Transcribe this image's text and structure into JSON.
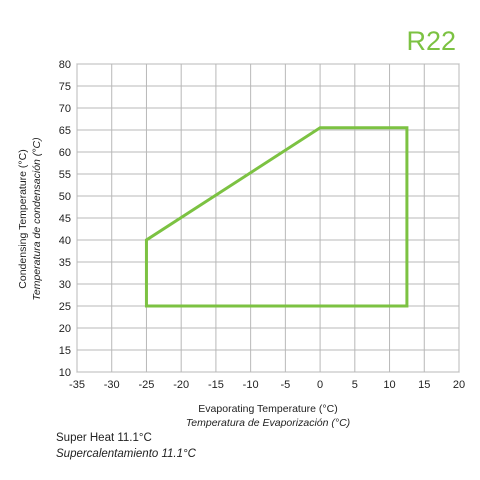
{
  "refrigerant": "R22",
  "notes": {
    "superheat_en": "Super Heat 11.1°C",
    "superheat_es": "Supercalentamiento 11.1°C"
  },
  "chart_data": {
    "type": "line",
    "title": "",
    "xlabel": "Evaporating Temperature (°C)",
    "xlabel_alt": "Temperatura de Evaporización (°C)",
    "ylabel": "Condensing Temperature (°C)",
    "ylabel_alt": "Temperatura de condensación (°C)",
    "xlim": [
      -35,
      20
    ],
    "ylim": [
      10,
      80
    ],
    "x_ticks": [
      -35,
      -30,
      -25,
      -20,
      -15,
      -10,
      -5,
      0,
      5,
      10,
      15,
      20
    ],
    "y_ticks": [
      10,
      15,
      20,
      25,
      30,
      35,
      40,
      45,
      50,
      55,
      60,
      65,
      70,
      75,
      80
    ],
    "grid": true,
    "envelope_color": "#7cc242",
    "series": [
      {
        "closed": true,
        "points": [
          {
            "x": -25,
            "y": 25
          },
          {
            "x": -25,
            "y": 40
          },
          {
            "x": 0,
            "y": 65.5
          },
          {
            "x": 12.5,
            "y": 65.5
          },
          {
            "x": 12.5,
            "y": 25
          }
        ]
      }
    ]
  }
}
